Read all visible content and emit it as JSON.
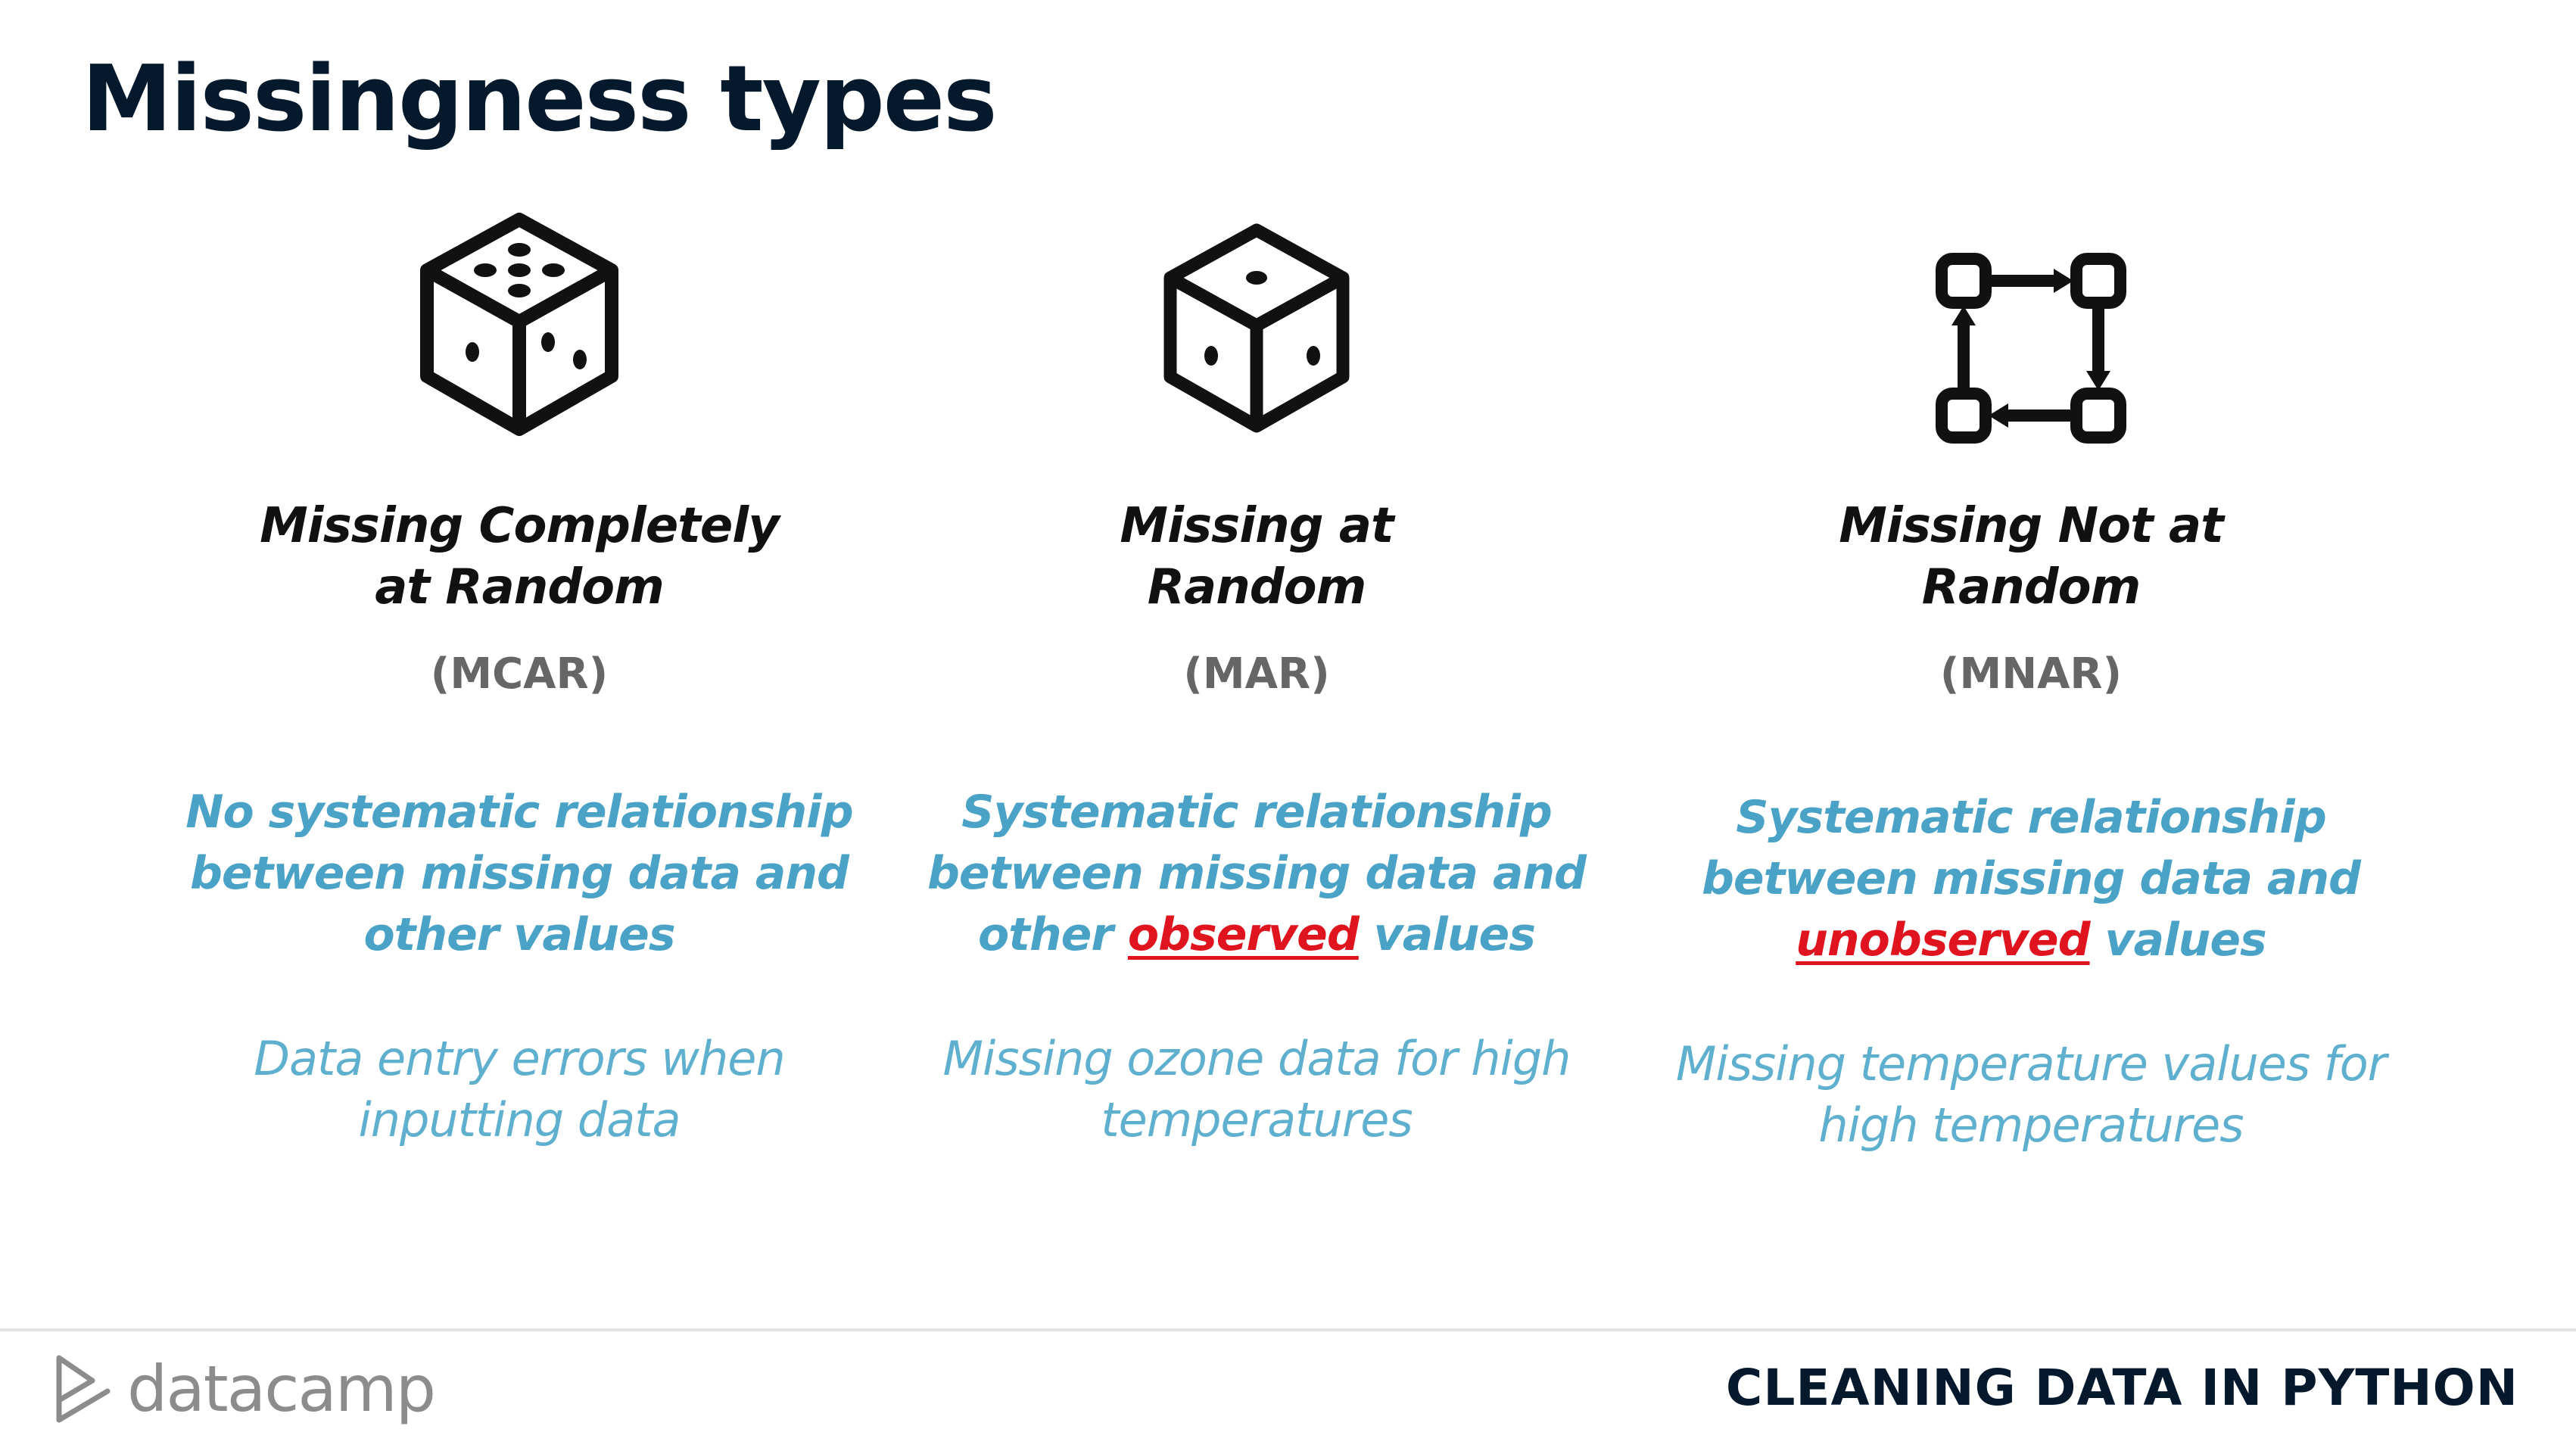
{
  "slide": {
    "title": "Missingness types"
  },
  "columns": [
    {
      "icon": "dice-five-icon",
      "title_line1": "Missing Completely",
      "title_line2": "at Random",
      "abbr": "(MCAR)",
      "desc_line1": "No systematic relationship",
      "desc_line2": "between missing data and",
      "desc_line3_pre": "other values",
      "desc_line3_em": "",
      "desc_line3_post": "",
      "example_line1": "Data entry errors when",
      "example_line2": "inputting data"
    },
    {
      "icon": "dice-one-icon",
      "title_line1": "Missing at",
      "title_line2": "Random",
      "abbr": "(MAR)",
      "desc_line1": "Systematic relationship",
      "desc_line2": "between missing data and",
      "desc_line3_pre": "other ",
      "desc_line3_em": "observed",
      "desc_line3_post": " values",
      "example_line1": "Missing ozone data for high",
      "example_line2": "temperatures"
    },
    {
      "icon": "cycle-nodes-icon",
      "title_line1": "Missing Not at",
      "title_line2": "Random",
      "abbr": "(MNAR)",
      "desc_line1": "Systematic relationship",
      "desc_line2": "between missing data and",
      "desc_line3_pre": "",
      "desc_line3_em": "unobserved",
      "desc_line3_post": " values",
      "example_line1": "Missing temperature values for",
      "example_line2": "high temperatures"
    }
  ],
  "footer": {
    "logo_text": "datacamp",
    "course_title": "CLEANING DATA IN PYTHON"
  },
  "colors": {
    "title": "#05192d",
    "desc": "#4aa3c6",
    "example": "#5fb0cf",
    "emphasis": "#e0141e",
    "abbr": "#666666"
  }
}
